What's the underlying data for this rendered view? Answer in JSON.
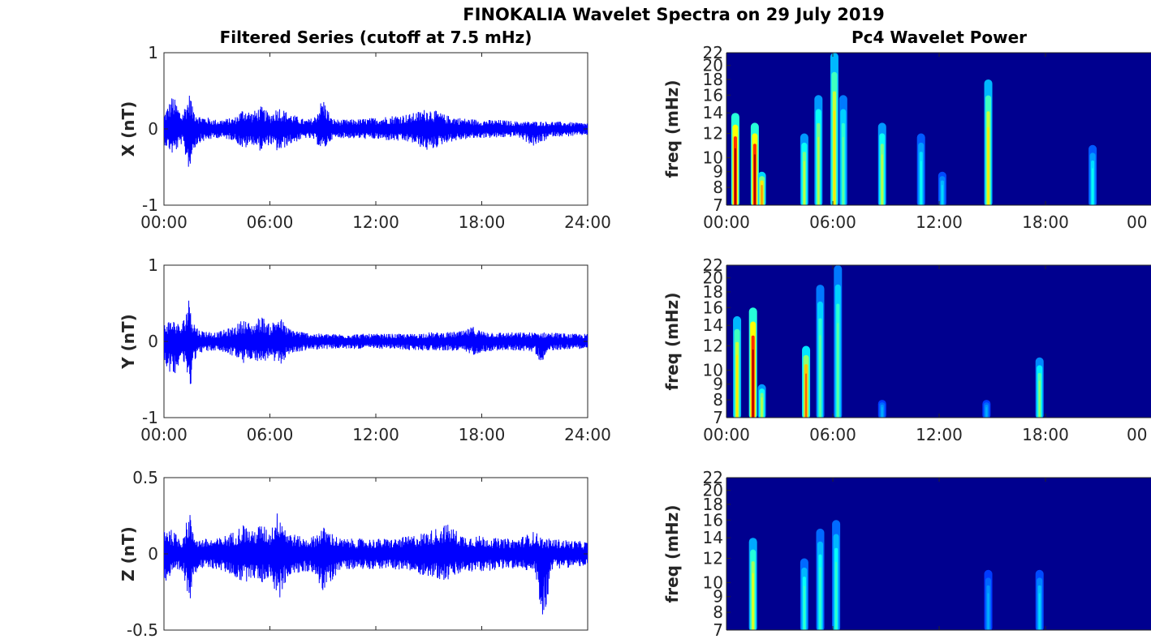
{
  "figure": {
    "title": "FINOKALIA Wavelet Spectra on 29 July 2019",
    "left_title": "Filtered Series (cutoff at 7.5 mHz)",
    "right_title": "Pc4 Wavelet Power"
  },
  "chart_data": [
    {
      "type": "line",
      "ylabel": "X (nT)",
      "xticks": [
        "00:00",
        "06:00",
        "12:00",
        "18:00",
        "24:00"
      ],
      "yticks": [
        "1",
        "0",
        "-1"
      ],
      "ylim": [
        -1,
        1
      ],
      "xlim_hours": [
        0,
        24
      ],
      "color": "#0000ff",
      "envelope": {
        "x_hours": [
          0,
          0.5,
          1,
          1.5,
          1.6,
          2,
          3,
          4,
          4.5,
          5,
          5.5,
          6,
          6.5,
          7,
          8,
          8.5,
          9,
          9.5,
          10,
          11,
          12,
          13,
          14,
          15,
          16,
          17,
          18,
          19,
          20,
          21,
          22,
          23,
          24
        ],
        "upper": [
          0.2,
          0.45,
          0.2,
          0.5,
          0.3,
          0.18,
          0.12,
          0.15,
          0.28,
          0.22,
          0.3,
          0.2,
          0.3,
          0.22,
          0.12,
          0.15,
          0.42,
          0.14,
          0.12,
          0.13,
          0.15,
          0.18,
          0.2,
          0.28,
          0.18,
          0.14,
          0.12,
          0.12,
          0.1,
          0.1,
          0.1,
          0.09,
          0.08
        ],
        "lower": [
          -0.2,
          -0.35,
          -0.2,
          -0.6,
          -0.3,
          -0.18,
          -0.12,
          -0.15,
          -0.28,
          -0.2,
          -0.3,
          -0.2,
          -0.32,
          -0.22,
          -0.12,
          -0.15,
          -0.3,
          -0.14,
          -0.12,
          -0.13,
          -0.14,
          -0.16,
          -0.18,
          -0.3,
          -0.18,
          -0.14,
          -0.12,
          -0.12,
          -0.1,
          -0.24,
          -0.1,
          -0.1,
          -0.08
        ]
      }
    },
    {
      "type": "line",
      "ylabel": "Y (nT)",
      "xticks": [
        "00:00",
        "06:00",
        "12:00",
        "18:00",
        "24:00"
      ],
      "yticks": [
        "1",
        "0",
        "-1"
      ],
      "ylim": [
        -1,
        1
      ],
      "xlim_hours": [
        0,
        24
      ],
      "color": "#0000ff",
      "envelope": {
        "x_hours": [
          0,
          0.5,
          1,
          1.5,
          1.6,
          2,
          3,
          4,
          4.5,
          5,
          5.5,
          6,
          6.5,
          7,
          8,
          9,
          10,
          11,
          12,
          13,
          14,
          15,
          16,
          17,
          17.5,
          18,
          19,
          20,
          21,
          21.3,
          22,
          23,
          24
        ],
        "upper": [
          0.25,
          0.3,
          0.2,
          0.65,
          0.3,
          0.15,
          0.12,
          0.2,
          0.3,
          0.22,
          0.35,
          0.22,
          0.35,
          0.18,
          0.12,
          0.1,
          0.1,
          0.1,
          0.1,
          0.1,
          0.1,
          0.12,
          0.12,
          0.14,
          0.2,
          0.14,
          0.12,
          0.12,
          0.12,
          0.12,
          0.12,
          0.1,
          0.1
        ],
        "lower": [
          -0.25,
          -0.5,
          -0.2,
          -0.65,
          -0.3,
          -0.15,
          -0.12,
          -0.2,
          -0.3,
          -0.22,
          -0.3,
          -0.22,
          -0.35,
          -0.18,
          -0.12,
          -0.1,
          -0.1,
          -0.1,
          -0.1,
          -0.1,
          -0.12,
          -0.12,
          -0.12,
          -0.14,
          -0.18,
          -0.14,
          -0.12,
          -0.12,
          -0.14,
          -0.28,
          -0.12,
          -0.1,
          -0.1
        ]
      }
    },
    {
      "type": "line",
      "ylabel": "Z (nT)",
      "xticks": [
        "",
        "",
        "",
        "",
        ""
      ],
      "yticks": [
        "0.5",
        "0",
        "-0.5"
      ],
      "ylim": [
        -0.5,
        0.5
      ],
      "xlim_hours": [
        0,
        24
      ],
      "color": "#0000ff",
      "envelope": {
        "x_hours": [
          0,
          0.5,
          1,
          1.5,
          1.6,
          2,
          3,
          4,
          4.5,
          5,
          5.5,
          6,
          6.5,
          7,
          8,
          8.5,
          9,
          10,
          11,
          12,
          13,
          14,
          15,
          16,
          17,
          18,
          19,
          20,
          21,
          21.5,
          22,
          23,
          24
        ],
        "upper": [
          0.2,
          0.15,
          0.1,
          0.3,
          0.15,
          0.1,
          0.1,
          0.15,
          0.2,
          0.15,
          0.2,
          0.15,
          0.3,
          0.15,
          0.1,
          0.12,
          0.18,
          0.1,
          0.1,
          0.1,
          0.1,
          0.12,
          0.15,
          0.2,
          0.12,
          0.12,
          0.1,
          0.1,
          0.15,
          0.1,
          0.1,
          0.09,
          0.08
        ],
        "lower": [
          -0.2,
          -0.15,
          -0.12,
          -0.32,
          -0.15,
          -0.1,
          -0.1,
          -0.15,
          -0.2,
          -0.15,
          -0.2,
          -0.15,
          -0.32,
          -0.15,
          -0.12,
          -0.12,
          -0.26,
          -0.1,
          -0.1,
          -0.1,
          -0.1,
          -0.12,
          -0.15,
          -0.18,
          -0.12,
          -0.12,
          -0.1,
          -0.1,
          -0.12,
          -0.46,
          -0.1,
          -0.09,
          -0.08
        ]
      }
    },
    {
      "type": "heatmap",
      "ylabel": "freq (mHz)",
      "xticks": [
        "00:00",
        "06:00",
        "12:00",
        "18:00",
        "00"
      ],
      "yticks": [
        "22",
        "20",
        "18",
        "16",
        "14",
        "12",
        "10",
        "9",
        "8",
        "7"
      ],
      "ylim_mhz": [
        7,
        22
      ],
      "xlim_hours": [
        0,
        24
      ],
      "background": "#00008f",
      "blobs": [
        {
          "t": 0.5,
          "f": 7.5,
          "ftop": 14,
          "power": 0.95
        },
        {
          "t": 1.6,
          "f": 8.0,
          "ftop": 13,
          "power": 0.95
        },
        {
          "t": 2.0,
          "f": 7.5,
          "ftop": 9,
          "power": 0.7
        },
        {
          "t": 4.4,
          "f": 9.0,
          "ftop": 12,
          "power": 0.5
        },
        {
          "t": 5.2,
          "f": 11.0,
          "ftop": 16,
          "power": 0.5
        },
        {
          "t": 6.1,
          "f": 9.0,
          "ftop": 22,
          "power": 0.6
        },
        {
          "t": 6.6,
          "f": 10.0,
          "ftop": 16,
          "power": 0.4
        },
        {
          "t": 8.8,
          "f": 9.0,
          "ftop": 13,
          "power": 0.5
        },
        {
          "t": 11.0,
          "f": 9.0,
          "ftop": 12,
          "power": 0.3
        },
        {
          "t": 12.2,
          "f": 8.0,
          "ftop": 9,
          "power": 0.25
        },
        {
          "t": 14.8,
          "f": 9.0,
          "ftop": 18,
          "power": 0.6
        },
        {
          "t": 20.7,
          "f": 9.0,
          "ftop": 11,
          "power": 0.3
        }
      ]
    },
    {
      "type": "heatmap",
      "ylabel": "freq (mHz)",
      "xticks": [
        "00:00",
        "06:00",
        "12:00",
        "18:00",
        "00"
      ],
      "yticks": [
        "22",
        "20",
        "18",
        "16",
        "14",
        "12",
        "10",
        "9",
        "8",
        "7"
      ],
      "ylim_mhz": [
        7,
        22
      ],
      "xlim_hours": [
        0,
        24
      ],
      "background": "#00008f",
      "blobs": [
        {
          "t": 0.6,
          "f": 10.0,
          "ftop": 15,
          "power": 0.6
        },
        {
          "t": 1.5,
          "f": 9.0,
          "ftop": 16,
          "power": 0.95
        },
        {
          "t": 2.0,
          "f": 7.5,
          "ftop": 9,
          "power": 0.5
        },
        {
          "t": 4.5,
          "f": 9.0,
          "ftop": 12,
          "power": 0.75
        },
        {
          "t": 5.3,
          "f": 10.0,
          "ftop": 19,
          "power": 0.4
        },
        {
          "t": 6.3,
          "f": 9.0,
          "ftop": 22,
          "power": 0.4
        },
        {
          "t": 8.8,
          "f": 7.5,
          "ftop": 8,
          "power": 0.2
        },
        {
          "t": 14.7,
          "f": 7.5,
          "ftop": 8,
          "power": 0.2
        },
        {
          "t": 17.7,
          "f": 8.5,
          "ftop": 11,
          "power": 0.45
        }
      ]
    },
    {
      "type": "heatmap",
      "ylabel": "freq (mHz)",
      "xticks": [
        "",
        "",
        "",
        "",
        ""
      ],
      "yticks": [
        "22",
        "20",
        "18",
        "16",
        "14",
        "12",
        "10",
        "9",
        "8",
        "7"
      ],
      "ylim_mhz": [
        7,
        22
      ],
      "xlim_hours": [
        0,
        24
      ],
      "background": "#00008f",
      "blobs": [
        {
          "t": 1.5,
          "f": 8.5,
          "ftop": 14,
          "power": 0.55
        },
        {
          "t": 4.4,
          "f": 9.0,
          "ftop": 12,
          "power": 0.35
        },
        {
          "t": 5.3,
          "f": 10.0,
          "ftop": 15,
          "power": 0.35
        },
        {
          "t": 6.2,
          "f": 10.0,
          "ftop": 16,
          "power": 0.35
        },
        {
          "t": 14.8,
          "f": 9.0,
          "ftop": 11,
          "power": 0.2
        },
        {
          "t": 17.7,
          "f": 9.0,
          "ftop": 11,
          "power": 0.25
        }
      ]
    }
  ]
}
